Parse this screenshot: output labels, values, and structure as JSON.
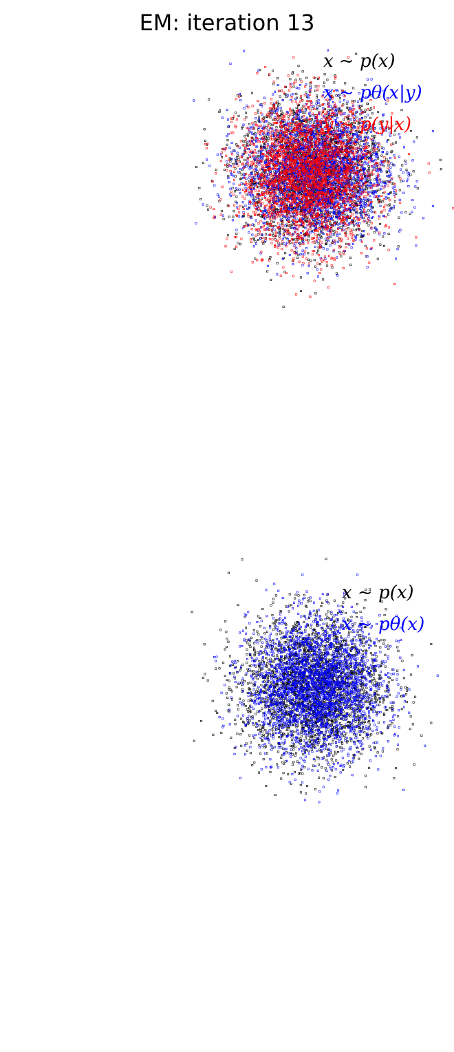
{
  "title": "EM: iteration 13",
  "colors": {
    "black": "#000000",
    "blue": "#0000ff",
    "red": "#ff0000"
  },
  "panels": [
    {
      "legend": [
        {
          "label": "x ~ p(x)",
          "color": "#000000"
        },
        {
          "label": "x ~ pθ(x|y)",
          "color": "#0000ff"
        },
        {
          "label": "y ~ p(y|x)",
          "color": "#ff0000"
        }
      ]
    },
    {
      "legend": [
        {
          "label": "x ~ p(x)",
          "color": "#000000"
        },
        {
          "label": "x ~ pθ(x)",
          "color": "#0000ff"
        }
      ]
    }
  ],
  "chart_data": [
    {
      "type": "scatter",
      "title": "EM: iteration 13",
      "grid": false,
      "axes_visible": false,
      "legend_position": "top-right",
      "series": [
        {
          "name": "x ~ p(x)",
          "color": "#000000",
          "distribution": "gaussian",
          "center": [
            0.0,
            0.0
          ],
          "std": [
            1.0,
            1.0
          ],
          "count": 2500
        },
        {
          "name": "x ~ pθ(x|y)",
          "color": "#0000ff",
          "distribution": "gaussian",
          "center": [
            0.05,
            0.0
          ],
          "std": [
            1.0,
            0.95
          ],
          "count": 2500
        },
        {
          "name": "y ~ p(y|x)",
          "color": "#ff0000",
          "distribution": "gaussian",
          "center": [
            -0.15,
            -0.1
          ],
          "std": [
            0.95,
            1.0
          ],
          "count": 2500
        }
      ]
    },
    {
      "type": "scatter",
      "grid": false,
      "axes_visible": false,
      "legend_position": "top-right",
      "series": [
        {
          "name": "x ~ p(x)",
          "color": "#000000",
          "distribution": "gaussian",
          "center": [
            0.0,
            0.0
          ],
          "std": [
            1.0,
            1.0
          ],
          "count": 2500
        },
        {
          "name": "x ~ pθ(x)",
          "color": "#0000ff",
          "distribution": "gaussian",
          "center": [
            0.1,
            0.0
          ],
          "std": [
            0.95,
            0.95
          ],
          "count": 2500
        }
      ]
    }
  ]
}
